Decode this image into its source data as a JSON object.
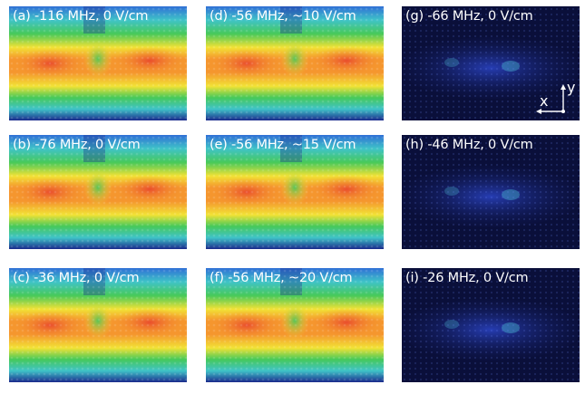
{
  "panels": [
    {
      "id": "a",
      "label": "(a) -116 MHz, 0 V/cm",
      "kind": "fluorescence",
      "col": 0,
      "row": 0
    },
    {
      "id": "b",
      "label": "(b) -76 MHz, 0 V/cm",
      "kind": "fluorescence",
      "col": 0,
      "row": 1
    },
    {
      "id": "c",
      "label": "(c) -36 MHz, 0 V/cm",
      "kind": "fluorescence",
      "col": 0,
      "row": 2
    },
    {
      "id": "d",
      "label": "(d) -56 MHz, ~10 V/cm",
      "kind": "fluorescence",
      "col": 1,
      "row": 0
    },
    {
      "id": "e",
      "label": "(e) -56 MHz, ~15 V/cm",
      "kind": "fluorescence",
      "col": 1,
      "row": 1
    },
    {
      "id": "f",
      "label": "(f) -56 MHz, ~20 V/cm",
      "kind": "fluorescence",
      "col": 1,
      "row": 2
    },
    {
      "id": "g",
      "label": "(g) -66 MHz, 0 V/cm",
      "kind": "dark",
      "col": 2,
      "row": 0
    },
    {
      "id": "h",
      "label": "(h) -46 MHz, 0 V/cm",
      "kind": "dark",
      "col": 2,
      "row": 1
    },
    {
      "id": "i",
      "label": "(i) -26 MHz, 0 V/cm",
      "kind": "dark",
      "col": 2,
      "row": 2
    }
  ],
  "axes": {
    "x_label": "x",
    "y_label": "y"
  },
  "colors": {
    "background": "#ffffff",
    "deep_blue": "#1a2a8c",
    "blue": "#2f6fd6",
    "cyan": "#3fc3c8",
    "green": "#47c95a",
    "yellow": "#f2e235",
    "orange": "#f5962e",
    "red": "#e8452d",
    "dark_bg": "#0a0f3a",
    "dark_glow": "#2b45c8",
    "dark_hot": "#56d6e6",
    "label_text": "#ffffff"
  }
}
